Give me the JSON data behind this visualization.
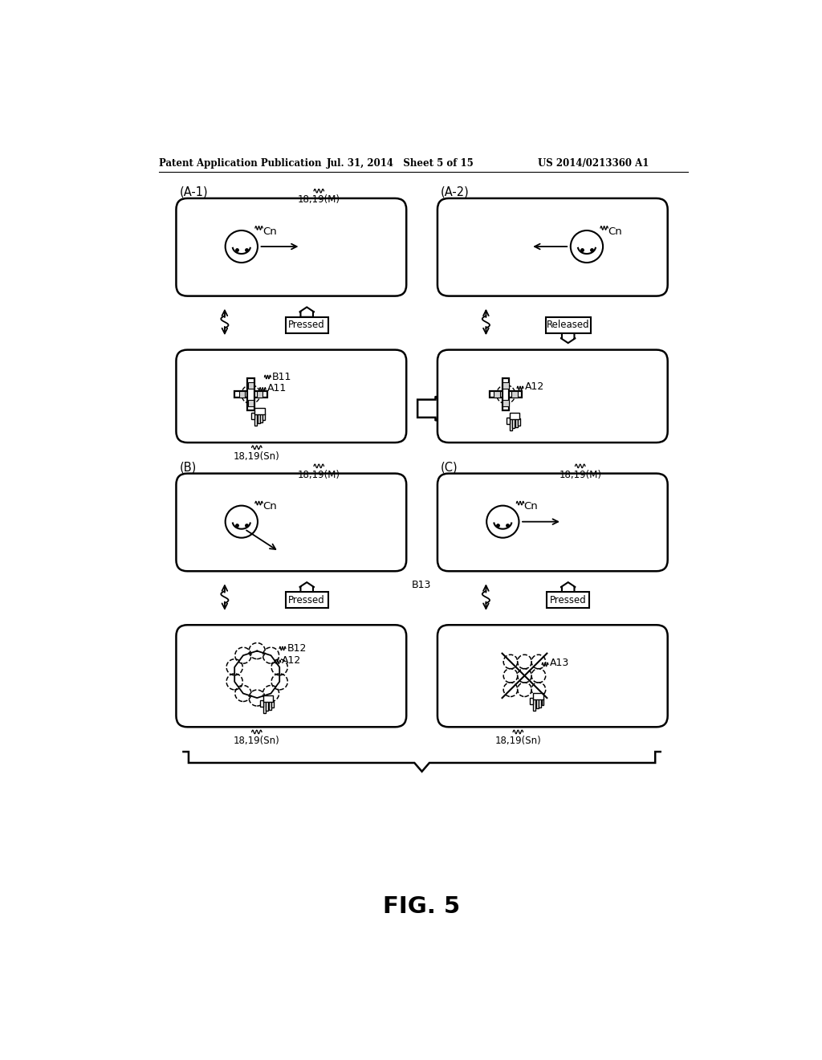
{
  "title": "FIG. 5",
  "header_left": "Patent Application Publication",
  "header_mid": "Jul. 31, 2014   Sheet 5 of 15",
  "header_right": "US 2014/0213360 A1",
  "bg": "#ffffff"
}
